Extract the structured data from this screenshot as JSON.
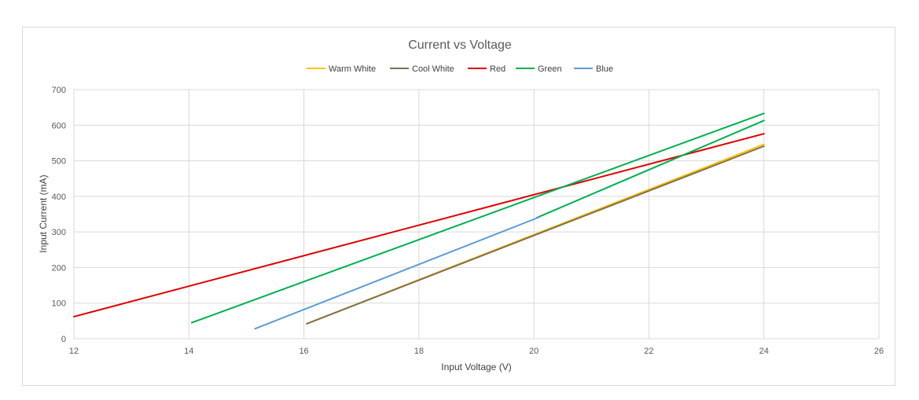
{
  "chart_data": {
    "type": "line",
    "title": "Current vs Voltage",
    "xlabel": "Input Voltage  (V)",
    "ylabel": "Input Current (mA)",
    "xlim": [
      12,
      26
    ],
    "ylim": [
      0,
      700
    ],
    "xticks": [
      12,
      14,
      16,
      18,
      20,
      22,
      24,
      26
    ],
    "yticks": [
      0,
      100,
      200,
      300,
      400,
      500,
      600,
      700
    ],
    "grid": true,
    "legend_position": "top",
    "series": [
      {
        "name": "Warm White",
        "color": "#FFC000",
        "x": [
          16.05,
          24
        ],
        "y": [
          42,
          546
        ]
      },
      {
        "name": "Cool White",
        "color": "#7F6F55",
        "x": [
          16.05,
          24
        ],
        "y": [
          42,
          541
        ]
      },
      {
        "name": "Red",
        "color": "#E00000",
        "x": [
          12,
          24
        ],
        "y": [
          62,
          576
        ]
      },
      {
        "name": "Green",
        "color": "#00B050",
        "x": [
          14.05,
          24
        ],
        "y": [
          45,
          633
        ]
      },
      {
        "name": "Green",
        "color": "#00B050",
        "x": [
          20.05,
          24
        ],
        "y": [
          340,
          613
        ],
        "legend": false
      },
      {
        "name": "Blue",
        "color": "#5B9BD5",
        "x": [
          15.15,
          20.1
        ],
        "y": [
          28,
          342
        ]
      }
    ]
  }
}
